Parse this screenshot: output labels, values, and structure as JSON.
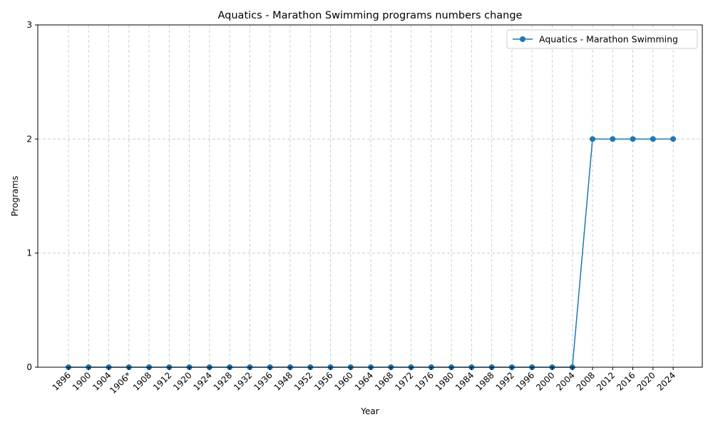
{
  "chart_data": {
    "type": "line",
    "title": "Aquatics - Marathon Swimming programs numbers change",
    "xlabel": "Year",
    "ylabel": "Programs",
    "categories": [
      "1896",
      "1900",
      "1904",
      "1906*",
      "1908",
      "1912",
      "1920",
      "1924",
      "1928",
      "1932",
      "1936",
      "1948",
      "1952",
      "1956",
      "1960",
      "1964",
      "1968",
      "1972",
      "1976",
      "1980",
      "1984",
      "1988",
      "1992",
      "1996",
      "2000",
      "2004",
      "2008",
      "2012",
      "2016",
      "2020",
      "2024"
    ],
    "series": [
      {
        "name": "Aquatics - Marathon Swimming",
        "color": "#1f77b4",
        "marker": "circle",
        "values": [
          0,
          0,
          0,
          0,
          0,
          0,
          0,
          0,
          0,
          0,
          0,
          0,
          0,
          0,
          0,
          0,
          0,
          0,
          0,
          0,
          0,
          0,
          0,
          0,
          0,
          0,
          2,
          2,
          2,
          2,
          2
        ]
      }
    ],
    "ylim": [
      0,
      3
    ],
    "yticks": [
      0,
      1,
      2,
      3
    ],
    "grid": true,
    "legend": "top-right"
  }
}
